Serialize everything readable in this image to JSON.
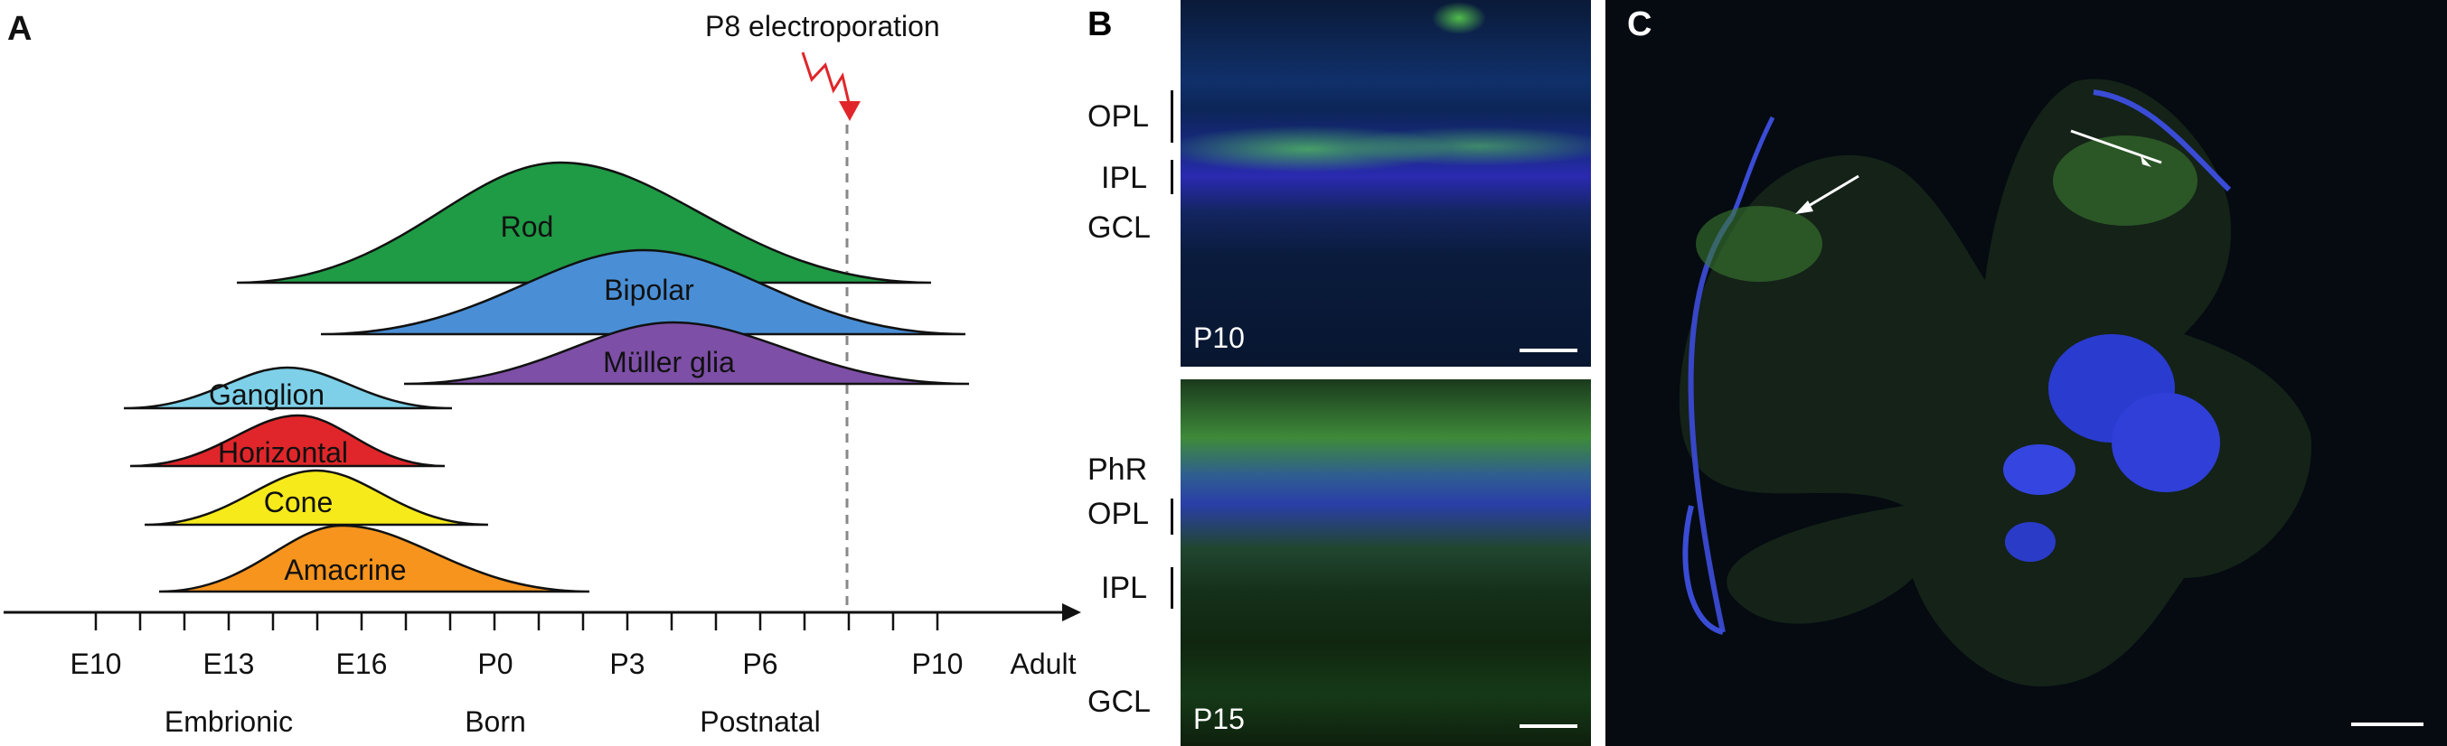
{
  "panels": {
    "a": "A",
    "b": "B",
    "c": "C"
  },
  "electroporation_label": "P8 electroporation",
  "timeline": {
    "ticks": [
      "E10",
      "E13",
      "E16",
      "P0",
      "P3",
      "P6",
      "P10",
      "Adult"
    ],
    "periods": [
      "Embrionic",
      "Born",
      "Postnatal"
    ]
  },
  "cell_types": [
    {
      "name": "Rod",
      "color": "#1f9a45"
    },
    {
      "name": "Bipolar",
      "color": "#4a8fd6"
    },
    {
      "name": "Müller glia",
      "color": "#7d4fa6"
    },
    {
      "name": "Ganglion",
      "color": "#7dd0e8"
    },
    {
      "name": "Horizontal",
      "color": "#e0262a"
    },
    {
      "name": "Cone",
      "color": "#f6ea1a"
    },
    {
      "name": "Amacrine",
      "color": "#f6941d"
    }
  ],
  "panel_b": {
    "top": {
      "age": "P10",
      "layers": [
        "OPL",
        "IPL",
        "GCL"
      ]
    },
    "bottom": {
      "age": "P15",
      "layers": [
        "PhR",
        "OPL",
        "IPL",
        "GCL"
      ]
    }
  }
}
